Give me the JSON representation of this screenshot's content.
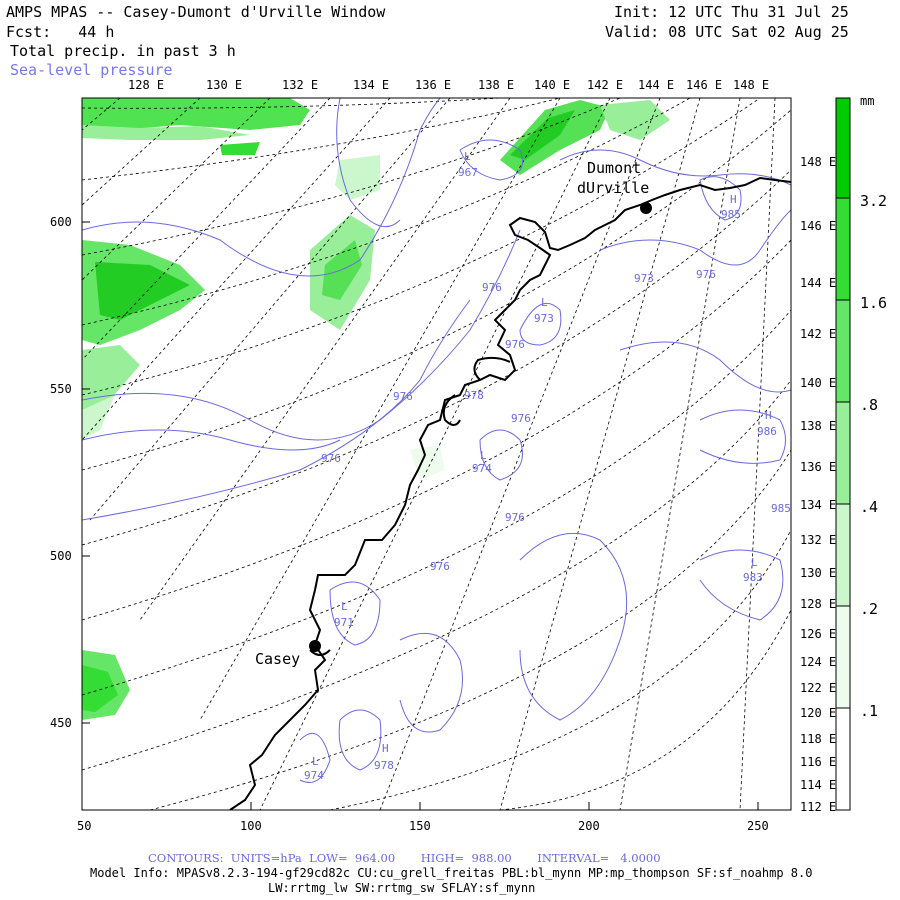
{
  "header": {
    "title": "AMPS MPAS -- Casey-Dumont d'Urville Window",
    "init": "Init: 12 UTC Thu 31 Jul 25",
    "fcst": "Fcst:   44 h",
    "valid": "Valid: 08 UTC Sat 02 Aug 25",
    "field": "Total precip. in past 3 h",
    "overlay": "Sea-level pressure"
  },
  "axes": {
    "x_ticks": [
      "50",
      "100",
      "150",
      "200",
      "250"
    ],
    "y_ticks": [
      "450",
      "500",
      "550",
      "600"
    ],
    "top_lon_labels": [
      "128 E",
      "130 E",
      "132 E",
      "134 E",
      "136 E",
      "138 E",
      "140 E",
      "142 E",
      "144 E",
      "146 E",
      "148 E"
    ],
    "right_lon_labels": [
      "148 E",
      "146 E",
      "144 E",
      "142 E",
      "140 E",
      "138 E",
      "136 E",
      "134 E",
      "132 E",
      "130 E",
      "128 E",
      "126 E",
      "124 E",
      "122 E",
      "120 E",
      "118 E",
      "116 E",
      "114 E",
      "112 E"
    ]
  },
  "colorbar": {
    "unit": "mm",
    "labels": [
      "3.2",
      "1.6",
      ".8",
      ".4",
      ".2",
      ".1"
    ],
    "colors": [
      "#00cc00",
      "#33dd33",
      "#66e666",
      "#99ee99",
      "#ccf7cc",
      "#eefcee"
    ]
  },
  "places": [
    {
      "name": "Casey"
    },
    {
      "name": "Dumont"
    },
    {
      "name": "dUrville"
    }
  ],
  "slp_labels": [
    {
      "text": "L",
      "sub": "967"
    },
    {
      "text": "L",
      "sub": "973"
    },
    {
      "text": "973"
    },
    {
      "text": "976"
    },
    {
      "text": "976"
    },
    {
      "text": "976"
    },
    {
      "text": "976"
    },
    {
      "text": "976"
    },
    {
      "text": "978"
    },
    {
      "text": "L",
      "sub": "974"
    },
    {
      "text": "976"
    },
    {
      "text": "976"
    },
    {
      "text": "976"
    },
    {
      "text": "L",
      "sub": "971"
    },
    {
      "text": "L",
      "sub": "974"
    },
    {
      "text": "H",
      "sub": "978"
    },
    {
      "text": "H",
      "sub": "985"
    },
    {
      "text": "H",
      "sub": "986"
    },
    {
      "text": "985"
    },
    {
      "text": "L",
      "sub": "983"
    }
  ],
  "footer": {
    "contours": "CONTOURS:  UNITS=hPa  LOW=  964.00       HIGH=  988.00       INTERVAL=   4.0000",
    "model_info": "Model Info: MPASv8.2.3-194-gf29cd82c CU:cu_grell_freitas PBL:bl_mynn MP:mp_thompson SF:sf_noahmp 8.0",
    "model_info2": "LW:rrtmg_lw SW:rrtmg_sw SFLAY:sf_mynn"
  },
  "style": {
    "contour_color": "#6a6ae0",
    "overlay_label_color": "#7777ee",
    "coast_color": "#000000"
  }
}
